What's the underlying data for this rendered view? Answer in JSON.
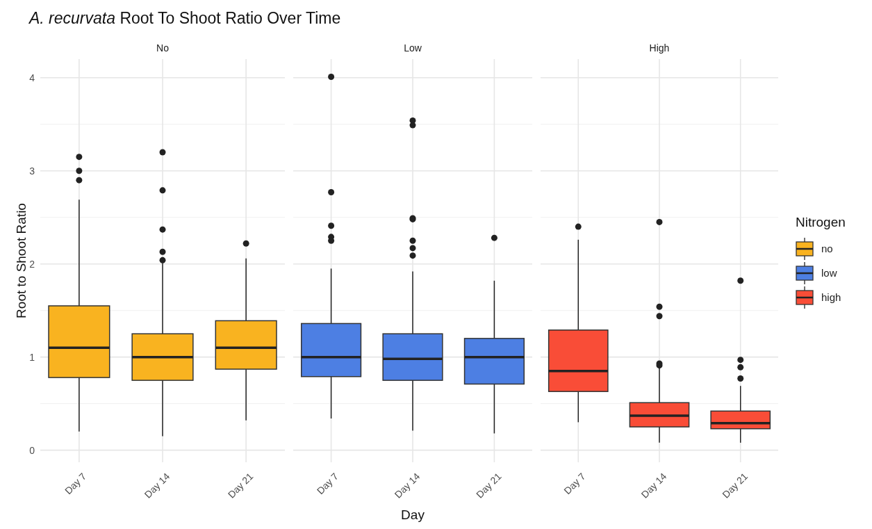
{
  "chart_data": [
    {
      "type": "box",
      "title": "A. recurvata Root To Shoot Ratio Over Time",
      "subtitle": "No",
      "ylabel": "Root to Shoot Ratio",
      "categories": [
        "Day 7",
        "Day 14",
        "Day 21"
      ],
      "ylim": [
        -0.13,
        4.2
      ],
      "yticks": [
        0,
        1,
        2,
        3,
        4
      ],
      "grid": true,
      "series": [
        {
          "name": "no",
          "color": "#f9b320",
          "boxes": [
            {
              "low": 0.2,
              "q1": 0.78,
              "median": 1.1,
              "q3": 1.55,
              "high": 2.69,
              "outliers": [
                3.15,
                3.0,
                2.9
              ]
            },
            {
              "low": 0.15,
              "q1": 0.75,
              "median": 1.0,
              "q3": 1.25,
              "high": 2.01,
              "outliers": [
                3.2,
                2.79,
                2.37,
                2.13,
                2.04
              ]
            },
            {
              "low": 0.32,
              "q1": 0.87,
              "median": 1.1,
              "q3": 1.39,
              "high": 2.06,
              "outliers": [
                2.22
              ]
            }
          ]
        }
      ]
    },
    {
      "type": "box",
      "subtitle": "Low",
      "xlabel": "Day",
      "categories": [
        "Day 7",
        "Day 14",
        "Day 21"
      ],
      "ylim": [
        -0.13,
        4.2
      ],
      "yticks": [
        0,
        1,
        2,
        3,
        4
      ],
      "grid": true,
      "tick_labels": "x",
      "series": [
        {
          "name": "low",
          "color": "#4d7fe3",
          "boxes": [
            {
              "low": 0.34,
              "q1": 0.79,
              "median": 1.0,
              "q3": 1.36,
              "high": 1.95,
              "outliers": [
                4.01,
                2.77,
                2.41,
                2.29,
                2.25
              ]
            },
            {
              "low": 0.21,
              "q1": 0.75,
              "median": 0.98,
              "q3": 1.25,
              "high": 1.92,
              "outliers": [
                3.54,
                3.49,
                2.49,
                2.48,
                2.25,
                2.17,
                2.09
              ]
            },
            {
              "low": 0.18,
              "q1": 0.71,
              "median": 1.0,
              "q3": 1.2,
              "high": 1.82,
              "outliers": [
                2.28
              ]
            }
          ]
        }
      ]
    },
    {
      "type": "box",
      "subtitle": "High",
      "legend_title": "Nitrogen",
      "legend": "right",
      "categories": [
        "Day 7",
        "Day 14",
        "Day 21"
      ],
      "ylim": [
        -0.13,
        4.2
      ],
      "yticks": [
        0,
        1,
        2,
        3,
        4
      ],
      "grid": true,
      "tick_labels": "x",
      "series": [
        {
          "name": "high",
          "color": "#f94d37",
          "boxes": [
            {
              "low": 0.3,
              "q1": 0.63,
              "median": 0.85,
              "q3": 1.29,
              "high": 2.26,
              "outliers": [
                2.4
              ]
            },
            {
              "low": 0.08,
              "q1": 0.25,
              "median": 0.37,
              "q3": 0.51,
              "high": 0.88,
              "outliers": [
                2.45,
                1.54,
                1.44,
                0.93,
                0.91
              ]
            },
            {
              "low": 0.08,
              "q1": 0.23,
              "median": 0.29,
              "q3": 0.42,
              "high": 0.69,
              "outliers": [
                1.82,
                0.97,
                0.89,
                0.77
              ]
            }
          ]
        }
      ]
    }
  ]
}
